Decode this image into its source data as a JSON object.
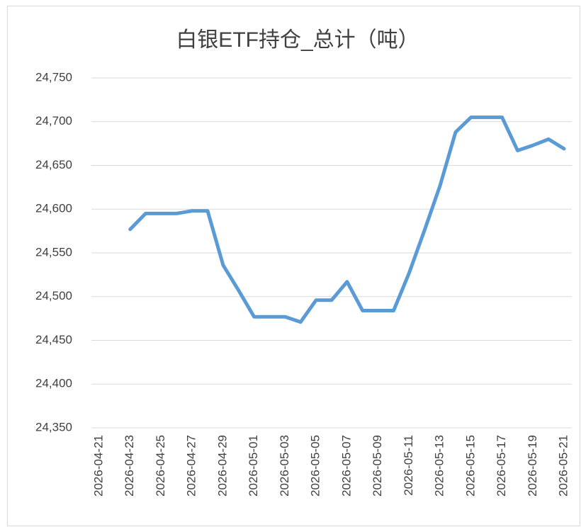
{
  "chart_data": {
    "type": "line",
    "title": "白银ETF持仓_总计（吨）",
    "categories": [
      "2026-04-21",
      null,
      "2026-04-23",
      null,
      "2026-04-25",
      null,
      "2026-04-27",
      null,
      "2026-04-29",
      null,
      "2026-05-01",
      null,
      "2026-05-03",
      null,
      "2026-05-05",
      null,
      "2026-05-07",
      null,
      "2026-05-09",
      null,
      "2026-05-11",
      null,
      "2026-05-13",
      null,
      "2026-05-15",
      null,
      "2026-05-17",
      null,
      "2026-05-19",
      null,
      "2026-05-21"
    ],
    "values": [
      null,
      null,
      24577,
      24595,
      24595,
      24595,
      24598,
      24598,
      24536,
      24507,
      24477,
      24477,
      24477,
      24471,
      24496,
      24496,
      24517,
      24484,
      24484,
      24484,
      24527,
      24576,
      24627,
      24688,
      24705,
      24705,
      24705,
      24667,
      24673,
      24680,
      24669
    ],
    "color": "#5b9bd5",
    "ylim": [
      24350,
      24750
    ],
    "yticks": [
      {
        "value": 24350,
        "label": "24,350"
      },
      {
        "value": 24400,
        "label": "24,400"
      },
      {
        "value": 24450,
        "label": "24,450"
      },
      {
        "value": 24500,
        "label": "24,500"
      },
      {
        "value": 24550,
        "label": "24,550"
      },
      {
        "value": 24600,
        "label": "24,600"
      },
      {
        "value": 24650,
        "label": "24,650"
      },
      {
        "value": 24700,
        "label": "24,700"
      },
      {
        "value": 24750,
        "label": "24,750"
      }
    ],
    "grid": true
  }
}
